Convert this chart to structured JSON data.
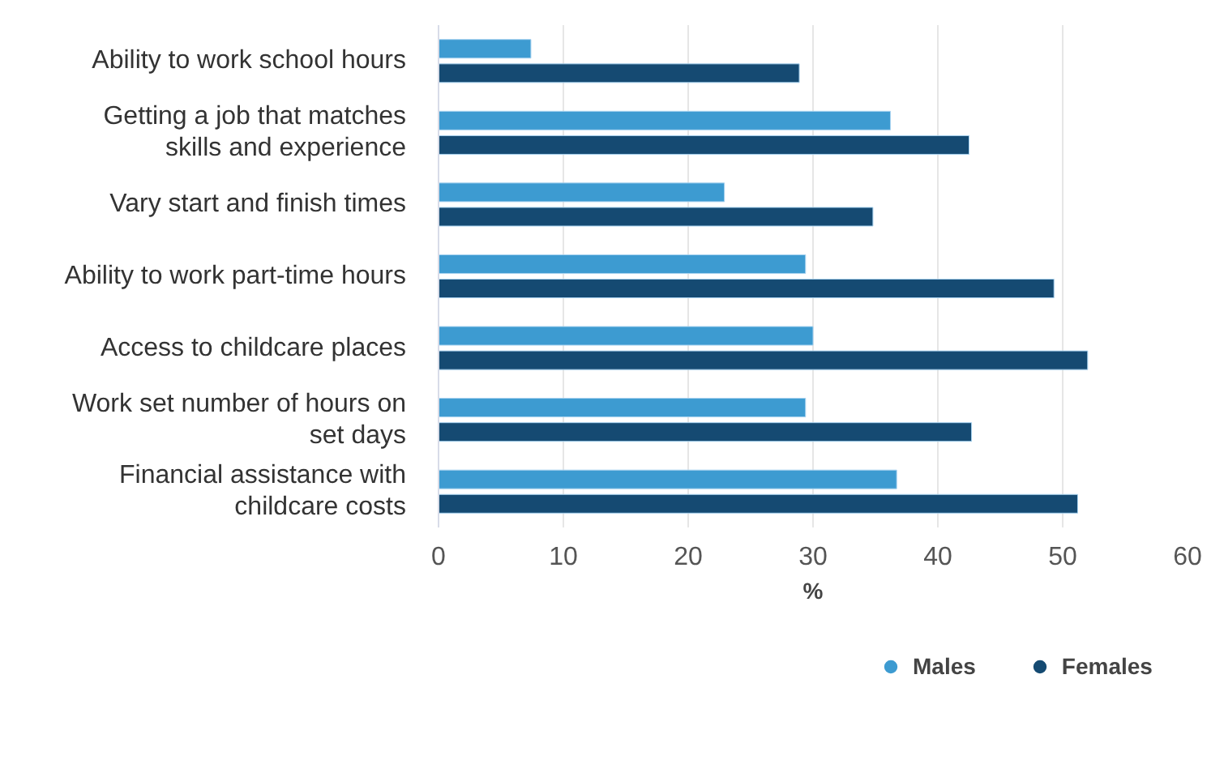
{
  "chart_data": {
    "type": "bar",
    "orientation": "horizontal",
    "xlabel": "%",
    "categories": [
      "Ability to work school hours",
      "Getting a job that matches skills and experience",
      "Vary start and finish times",
      "Ability to work part-time hours",
      "Access to childcare places",
      "Work set number of hours on set days",
      "Financial assistance with childcare costs"
    ],
    "series": [
      {
        "name": "Males",
        "color": "#3d9bd1",
        "values": [
          7.4,
          36.2,
          22.9,
          29.4,
          30.0,
          29.4,
          36.7
        ]
      },
      {
        "name": "Females",
        "color": "#154a72",
        "values": [
          28.9,
          42.5,
          34.8,
          49.3,
          52.0,
          42.7,
          51.2
        ]
      }
    ],
    "xlim": [
      0,
      60
    ],
    "xticks": [
      0,
      10,
      20,
      30,
      40,
      50,
      60
    ],
    "grid": "x",
    "legend": "bottom"
  }
}
